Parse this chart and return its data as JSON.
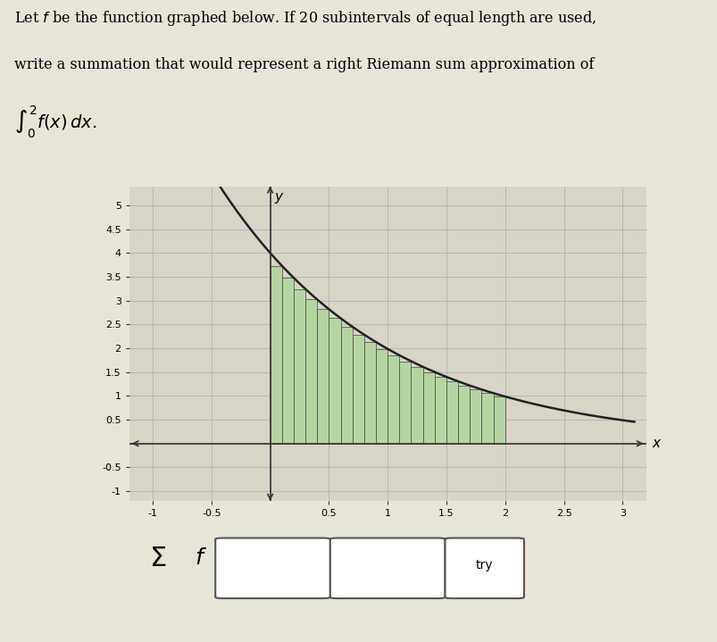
{
  "title_text": "Let $f$ be the function graphed below. If 20 subintervals of equal length are used,\nwrite a summation that would represent a right Riemann sum approximation of\n$\\int_0^2 f(x)\\, dx.$",
  "xlim": [
    -1.2,
    3.2
  ],
  "ylim": [
    -1.2,
    5.4
  ],
  "xticks": [
    -1,
    -0.5,
    0.5,
    1,
    1.5,
    2,
    2.5,
    3
  ],
  "yticks": [
    -1,
    -0.5,
    0.5,
    1,
    1.5,
    2,
    2.5,
    3,
    3.5,
    4,
    4.5,
    5
  ],
  "x_tick_labels": [
    "-1",
    "-0.5",
    "0.5",
    "1",
    "1.5",
    "2",
    "2.5",
    "3"
  ],
  "y_tick_labels": [
    "-1",
    "-0.5",
    "0.5",
    "1",
    "1.5",
    "2",
    "2.5",
    "3",
    "3.5",
    "4",
    "4.5",
    "5"
  ],
  "bar_color": "#b5d5a0",
  "bar_edge_color": "#444444",
  "curve_color": "#222222",
  "n_subintervals": 20,
  "integral_lower": 0,
  "integral_upper": 2,
  "background_color": "#e8e4d8",
  "graph_bg_color": "#d8d4c8",
  "grid_color": "#aaaaaa",
  "axis_color": "#333333",
  "sigma_text": "$\\Sigma f$",
  "box1_label": "",
  "box2_label": "",
  "try_label": "try"
}
